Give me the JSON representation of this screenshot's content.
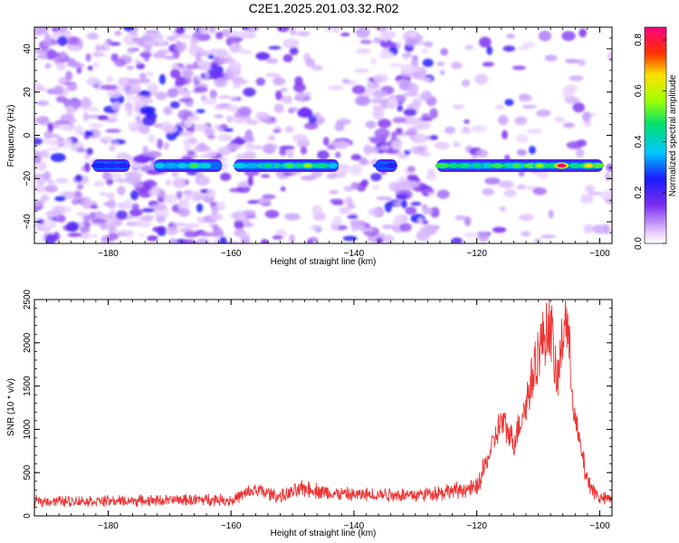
{
  "title": "C2E1.2025.201.03.32.R02",
  "chart_data": [
    {
      "type": "heatmap",
      "xlabel": "Height of straight line (km)",
      "ylabel": "Frequency (Hz)",
      "xlim": [
        -192,
        -98
      ],
      "ylim": [
        -50,
        50
      ],
      "xticks": [
        -180,
        -160,
        -140,
        -120,
        -100
      ],
      "yticks": [
        -40,
        -20,
        0,
        20,
        40
      ],
      "colorbar": {
        "label": "Normalized spectral amplitude",
        "range": [
          0,
          0.85
        ],
        "ticks": [
          "0.0",
          "0.2",
          "0.4",
          "0.6",
          "0.8"
        ]
      },
      "band": {
        "frequency_hz": -14,
        "segments": [
          {
            "x0": -182.5,
            "x1": -176.5,
            "level": 0.25
          },
          {
            "x0": -172.5,
            "x1": -161.5,
            "level": 0.35
          },
          {
            "x0": -159.5,
            "x1": -142.5,
            "level": 0.4
          },
          {
            "x0": -136.5,
            "x1": -133,
            "level": 0.25
          },
          {
            "x0": -126.5,
            "x1": -99.5,
            "level": 0.45
          }
        ],
        "hotspots": [
          {
            "x": -106.2,
            "level": 0.82
          },
          {
            "x": -101.8,
            "level": 0.65
          },
          {
            "x": -109.8,
            "level": 0.55
          },
          {
            "x": -113.5,
            "level": 0.5
          },
          {
            "x": -147.5,
            "level": 0.55
          },
          {
            "x": -150.5,
            "level": 0.5
          },
          {
            "x": -166.0,
            "level": 0.5
          },
          {
            "x": -154.0,
            "level": 0.45
          },
          {
            "x": -120.0,
            "level": 0.45
          }
        ]
      }
    },
    {
      "type": "line",
      "xlabel": "Height of straight line (km)",
      "ylabel": "SNR (10 * v/v)",
      "xlim": [
        -192,
        -98
      ],
      "ylim": [
        0,
        2500
      ],
      "xticks": [
        -180,
        -160,
        -140,
        -120,
        -100
      ],
      "yticks": [
        0,
        500,
        1000,
        1500,
        2000,
        2500
      ],
      "color": "#ee3333",
      "envelope": [
        {
          "x": -192,
          "y": 170
        },
        {
          "x": -180,
          "y": 170
        },
        {
          "x": -170,
          "y": 180
        },
        {
          "x": -163,
          "y": 190
        },
        {
          "x": -160,
          "y": 180
        },
        {
          "x": -156,
          "y": 300
        },
        {
          "x": -152,
          "y": 220
        },
        {
          "x": -148,
          "y": 320
        },
        {
          "x": -144,
          "y": 260
        },
        {
          "x": -140,
          "y": 240
        },
        {
          "x": -135,
          "y": 250
        },
        {
          "x": -130,
          "y": 240
        },
        {
          "x": -125,
          "y": 280
        },
        {
          "x": -120,
          "y": 320
        },
        {
          "x": -118,
          "y": 700
        },
        {
          "x": -116,
          "y": 1100
        },
        {
          "x": -114,
          "y": 850
        },
        {
          "x": -112,
          "y": 1300
        },
        {
          "x": -110,
          "y": 1900
        },
        {
          "x": -108,
          "y": 2250
        },
        {
          "x": -107,
          "y": 1500
        },
        {
          "x": -105.5,
          "y": 2350
        },
        {
          "x": -104,
          "y": 1100
        },
        {
          "x": -102,
          "y": 400
        },
        {
          "x": -100,
          "y": 200
        },
        {
          "x": -98,
          "y": 200
        }
      ]
    }
  ]
}
